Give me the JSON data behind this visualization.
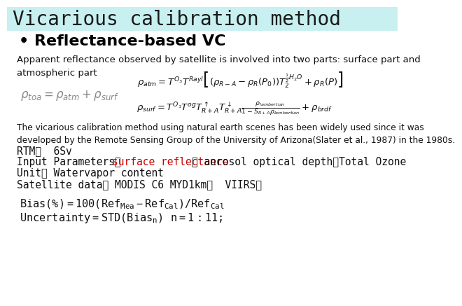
{
  "bg_color": "#ffffff",
  "header_bg": "#c8f0f0",
  "title": "Vicarious calibration method",
  "title_fontsize": 20,
  "title_color": "#1a1a1a",
  "bullet_label": "• Reflectance-based VC",
  "desc_text": "Apparent reflectance observed by satellite is involved into two parts: surface part and\natmospheric part",
  "vicarious_text": "The vicarious calibration method using natural earth scenes has been widely used since it was\ndeveloped by the Remote Sensing Group of the University of Arizona(Slater et al., 1987) in the 1980s.",
  "rtm_line": "RTM：  6Sv",
  "input_line_black1": "Input Parameters： ",
  "input_line_red": "surface reflectance",
  "input_line_black2": "； aerosol optical depth；Total Ozone",
  "unit_line": "Unit； Watervapor content",
  "satellite_line": "Satellite data； MODIS C6 MYD1km；  VIIRS；",
  "red_color": "#cc0000",
  "mono_color": "#111111",
  "mono_fontsize": 10.5,
  "desc_fontsize": 9.5,
  "vicarious_fontsize": 8.8
}
